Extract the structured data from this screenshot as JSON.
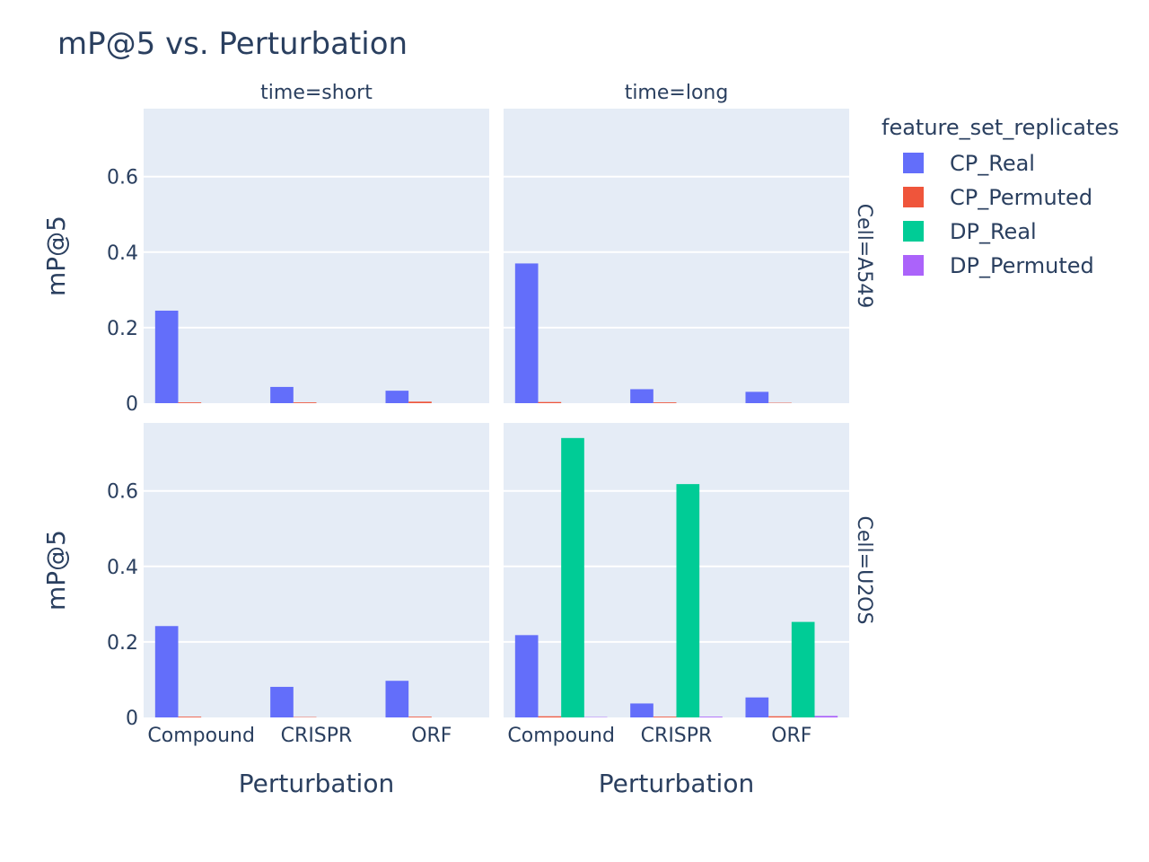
{
  "chart_data": {
    "type": "bar",
    "title": "mP@5 vs. Perturbation",
    "xlabel": "Perturbation",
    "ylabel": "mP@5",
    "categories": [
      "Compound",
      "CRISPR",
      "ORF"
    ],
    "ylim": [
      0,
      0.78
    ],
    "yticks": [
      0,
      0.2,
      0.4,
      0.6
    ],
    "ytick_labels": [
      "0",
      "0.2",
      "0.4",
      "0.6"
    ],
    "grid": true,
    "legend": {
      "title": "feature_set_replicates",
      "placement": "right",
      "entries": [
        "CP_Real",
        "CP_Permuted",
        "DP_Real",
        "DP_Permuted"
      ]
    },
    "colors": {
      "CP_Real": "#636efa",
      "CP_Permuted": "#ef553b",
      "DP_Real": "#00cc96",
      "DP_Permuted": "#ab63fa"
    },
    "column_facets": [
      "time=short",
      "time=long"
    ],
    "row_facets": [
      "Cell=A549",
      "Cell=U2OS"
    ],
    "panels": [
      {
        "row": 0,
        "col": 0,
        "series": [
          {
            "name": "CP_Real",
            "values": [
              0.245,
              0.043,
              0.033
            ]
          },
          {
            "name": "CP_Permuted",
            "values": [
              0.002,
              0.002,
              0.004
            ]
          },
          {
            "name": "DP_Real",
            "values": [
              0,
              0,
              0
            ]
          },
          {
            "name": "DP_Permuted",
            "values": [
              0,
              0,
              0
            ]
          }
        ]
      },
      {
        "row": 0,
        "col": 1,
        "series": [
          {
            "name": "CP_Real",
            "values": [
              0.37,
              0.037,
              0.03
            ]
          },
          {
            "name": "CP_Permuted",
            "values": [
              0.003,
              0.002,
              0.001
            ]
          },
          {
            "name": "DP_Real",
            "values": [
              0,
              0,
              0
            ]
          },
          {
            "name": "DP_Permuted",
            "values": [
              0,
              0,
              0
            ]
          }
        ]
      },
      {
        "row": 1,
        "col": 0,
        "series": [
          {
            "name": "CP_Real",
            "values": [
              0.242,
              0.081,
              0.097
            ]
          },
          {
            "name": "CP_Permuted",
            "values": [
              0.002,
              0.001,
              0.002
            ]
          },
          {
            "name": "DP_Real",
            "values": [
              0,
              0,
              0
            ]
          },
          {
            "name": "DP_Permuted",
            "values": [
              0,
              0,
              0
            ]
          }
        ]
      },
      {
        "row": 1,
        "col": 1,
        "series": [
          {
            "name": "CP_Real",
            "values": [
              0.218,
              0.037,
              0.053
            ]
          },
          {
            "name": "CP_Permuted",
            "values": [
              0.003,
              0.002,
              0.003
            ]
          },
          {
            "name": "DP_Real",
            "values": [
              0.74,
              0.618,
              0.253
            ]
          },
          {
            "name": "DP_Permuted",
            "values": [
              0.001,
              0.002,
              0.004
            ]
          }
        ]
      }
    ]
  }
}
